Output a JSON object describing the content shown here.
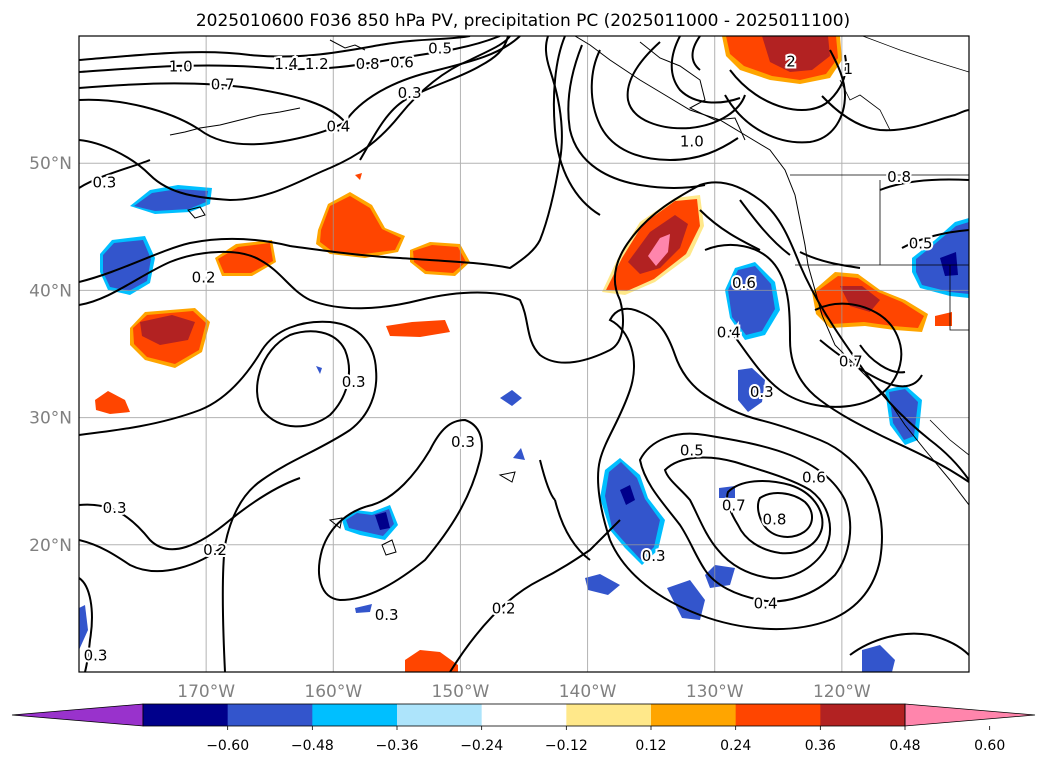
{
  "title": "2025010600 F036 850 hPa PV, precipitation PC (2025011000 - 2025011100)",
  "map": {
    "lon_range": [
      -180,
      -110
    ],
    "lat_range": [
      10,
      60
    ],
    "lon_ticks": [
      {
        "value": -170,
        "label": "170°W"
      },
      {
        "value": -160,
        "label": "160°W"
      },
      {
        "value": -150,
        "label": "150°W"
      },
      {
        "value": -140,
        "label": "140°W"
      },
      {
        "value": -130,
        "label": "130°W"
      },
      {
        "value": -120,
        "label": "120°W"
      }
    ],
    "lat_ticks": [
      {
        "value": 20,
        "label": "20°N"
      },
      {
        "value": 30,
        "label": "30°N"
      },
      {
        "value": 40,
        "label": "40°N"
      },
      {
        "value": 50,
        "label": "50°N"
      }
    ],
    "grid": true,
    "contour_variable": "850 hPa PV",
    "contour_labels": [
      {
        "lon": -172,
        "lat": 57.6,
        "text": "1.0"
      },
      {
        "lon": -168.7,
        "lat": 56.2,
        "text": "0.7"
      },
      {
        "lon": -163.7,
        "lat": 57.8,
        "text": "1.4"
      },
      {
        "lon": -161.3,
        "lat": 57.8,
        "text": "1.2"
      },
      {
        "lon": -157.3,
        "lat": 57.8,
        "text": "0.8"
      },
      {
        "lon": -154.6,
        "lat": 57.9,
        "text": "0.6"
      },
      {
        "lon": -151.6,
        "lat": 59.0,
        "text": "0.5"
      },
      {
        "lon": -154,
        "lat": 55.5,
        "text": "0.3"
      },
      {
        "lon": -159.6,
        "lat": 52.9,
        "text": "0.4"
      },
      {
        "lon": -178,
        "lat": 48.5,
        "text": "0.3"
      },
      {
        "lon": -170.2,
        "lat": 41.0,
        "text": "0.2"
      },
      {
        "lon": -158.4,
        "lat": 32.8,
        "text": "0.3"
      },
      {
        "lon": -149.8,
        "lat": 28.1,
        "text": "0.3"
      },
      {
        "lon": -177.2,
        "lat": 22.9,
        "text": "0.3"
      },
      {
        "lon": -169.3,
        "lat": 19.6,
        "text": "0.2"
      },
      {
        "lon": -155.8,
        "lat": 14.5,
        "text": "0.3"
      },
      {
        "lon": -146.6,
        "lat": 15.0,
        "text": "0.2"
      },
      {
        "lon": -178.7,
        "lat": 11.3,
        "text": "0.3"
      },
      {
        "lon": -131.8,
        "lat": 51.7,
        "text": "1.0"
      },
      {
        "lon": -127.7,
        "lat": 40.6,
        "text": "0.6"
      },
      {
        "lon": -128.9,
        "lat": 36.7,
        "text": "0.4"
      },
      {
        "lon": -126.3,
        "lat": 32.0,
        "text": "0.3"
      },
      {
        "lon": -119.3,
        "lat": 34.4,
        "text": "0.7"
      },
      {
        "lon": -131.8,
        "lat": 27.4,
        "text": "0.5"
      },
      {
        "lon": -128.5,
        "lat": 23.1,
        "text": "0.7"
      },
      {
        "lon": -125.3,
        "lat": 22.0,
        "text": "0.8"
      },
      {
        "lon": -122.2,
        "lat": 25.3,
        "text": "0.6"
      },
      {
        "lon": -126.0,
        "lat": 15.4,
        "text": "0.4"
      },
      {
        "lon": -134.8,
        "lat": 19.1,
        "text": "0.3"
      },
      {
        "lon": -115.5,
        "lat": 48.9,
        "text": "0.8"
      },
      {
        "lon": -113.8,
        "lat": 43.7,
        "text": "0.5"
      },
      {
        "lon": -124.0,
        "lat": 58.0,
        "text": "2"
      },
      {
        "lon": -119.5,
        "lat": 57.4,
        "text": "1"
      }
    ]
  },
  "shading": {
    "variable": "precipitation PC",
    "colors": {
      "lt_-0.60": "#9932cc",
      "-0.60_-0.48": "#00008b",
      "-0.48_-0.36": "#3355cc",
      "-0.36_-0.24": "#00bfff",
      "-0.24_-0.12": "#ade4fb",
      "0.12_0.24": "#ffe88a",
      "0.24_0.36": "#ffa500",
      "0.36_0.48": "#ff4500",
      "0.48_0.60": "#b22222",
      "gt_0.60": "#ff85ac"
    }
  },
  "colorbar": {
    "extend": "both",
    "boundaries": [
      -0.6,
      -0.48,
      -0.36,
      -0.24,
      -0.12,
      0.12,
      0.24,
      0.36,
      0.48,
      0.6
    ],
    "tick_labels": [
      "−0.60",
      "−0.48",
      "−0.36",
      "−0.24",
      "−0.12",
      "0.12",
      "0.24",
      "0.36",
      "0.48",
      "0.60"
    ],
    "colors": [
      "#9932cc",
      "#00008b",
      "#3355cc",
      "#00bfff",
      "#ade4fb",
      "#ffffff",
      "#ffe88a",
      "#ffa500",
      "#ff4500",
      "#b22222",
      "#ff85ac"
    ]
  }
}
